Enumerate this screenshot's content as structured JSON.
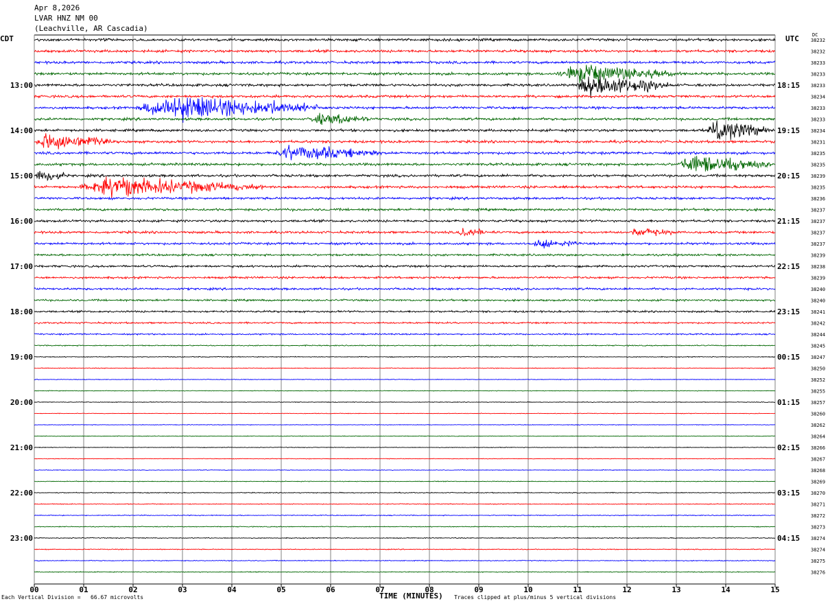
{
  "header": {
    "date": "Apr 8,2026",
    "station": "LVAR HNZ NM 00",
    "location": "(Leachville, AR Cascadia)"
  },
  "left_timezone": "CDT",
  "right_timezone": "UTC",
  "dc_label": "DC",
  "footer": {
    "scale_text": "Each Vertical Division =   66.67 microvolts",
    "xlabel": "TIME (MINUTES)",
    "clip_text": "Traces clipped at plus/minus 5 vertical divisions"
  },
  "colors": {
    "trace_cycle": [
      "#000000",
      "#ff0000",
      "#0000ff",
      "#006600"
    ],
    "grid": "#808080",
    "background": "#ffffff"
  },
  "chart_data": {
    "type": "seismogram",
    "x_range": [
      0,
      15
    ],
    "x_ticks": [
      "00",
      "01",
      "02",
      "03",
      "04",
      "05",
      "06",
      "07",
      "08",
      "09",
      "10",
      "11",
      "12",
      "13",
      "14",
      "15"
    ],
    "left_hour_labels": [
      "13:00",
      "14:00",
      "15:00",
      "16:00",
      "17:00",
      "18:00",
      "19:00",
      "20:00",
      "21:00",
      "22:00",
      "23:00"
    ],
    "right_hour_labels": [
      "18:15",
      "19:15",
      "20:15",
      "21:15",
      "22:15",
      "23:15",
      "00:15",
      "01:15",
      "02:15",
      "03:15",
      "04:15"
    ],
    "trace_minutes": 15,
    "dc_offsets": [
      "38232",
      "38232",
      "38233",
      "38233",
      "38233",
      "38234",
      "38233",
      "38233",
      "38234",
      "38231",
      "38235",
      "38235",
      "38239",
      "38235",
      "38236",
      "38237",
      "38237",
      "38237",
      "38237",
      "38239",
      "38238",
      "38239",
      "38240",
      "38240",
      "38241",
      "38242",
      "38244",
      "38245",
      "38247",
      "38250",
      "38252",
      "38255",
      "38257",
      "38260",
      "38262",
      "38264",
      "38266",
      "38267",
      "38268",
      "38269",
      "38270",
      "38271",
      "38272",
      "38273",
      "38274",
      "38274",
      "38275",
      "38276"
    ],
    "noise_levels": [
      1.2,
      1.2,
      1.2,
      1.2,
      1.2,
      1.2,
      1.2,
      1.2,
      1.2,
      1.2,
      1.2,
      1.2,
      1.2,
      1.2,
      1.1,
      1.1,
      1.1,
      1.1,
      1.1,
      1.0,
      1.0,
      1.0,
      1.0,
      0.9,
      0.9,
      0.8,
      0.7,
      0.5,
      0.4,
      0.35,
      0.3,
      0.3,
      0.3,
      0.3,
      0.3,
      0.3,
      0.3,
      0.3,
      0.3,
      0.35,
      0.4,
      0.4,
      0.4,
      0.4,
      0.4,
      0.4,
      0.4,
      0.4
    ],
    "events": [
      {
        "trace": 3,
        "start": 10.5,
        "end": 13.2,
        "amplitude": 12
      },
      {
        "trace": 4,
        "start": 10.9,
        "end": 13.0,
        "amplitude": 14
      },
      {
        "trace": 6,
        "start": 2.0,
        "end": 6.0,
        "amplitude": 16
      },
      {
        "trace": 7,
        "start": 5.5,
        "end": 7.0,
        "amplitude": 8
      },
      {
        "trace": 8,
        "start": 13.6,
        "end": 15.0,
        "amplitude": 14
      },
      {
        "trace": 9,
        "start": 0.0,
        "end": 1.6,
        "amplitude": 14
      },
      {
        "trace": 10,
        "start": 4.8,
        "end": 7.2,
        "amplitude": 10
      },
      {
        "trace": 11,
        "start": 13.0,
        "end": 15.0,
        "amplitude": 14
      },
      {
        "trace": 12,
        "start": 0.0,
        "end": 0.7,
        "amplitude": 10
      },
      {
        "trace": 13,
        "start": 0.8,
        "end": 4.9,
        "amplitude": 12
      },
      {
        "trace": 17,
        "start": 8.5,
        "end": 9.4,
        "amplitude": 6
      },
      {
        "trace": 17,
        "start": 12.0,
        "end": 13.2,
        "amplitude": 6
      },
      {
        "trace": 18,
        "start": 10.0,
        "end": 11.2,
        "amplitude": 6
      }
    ]
  }
}
